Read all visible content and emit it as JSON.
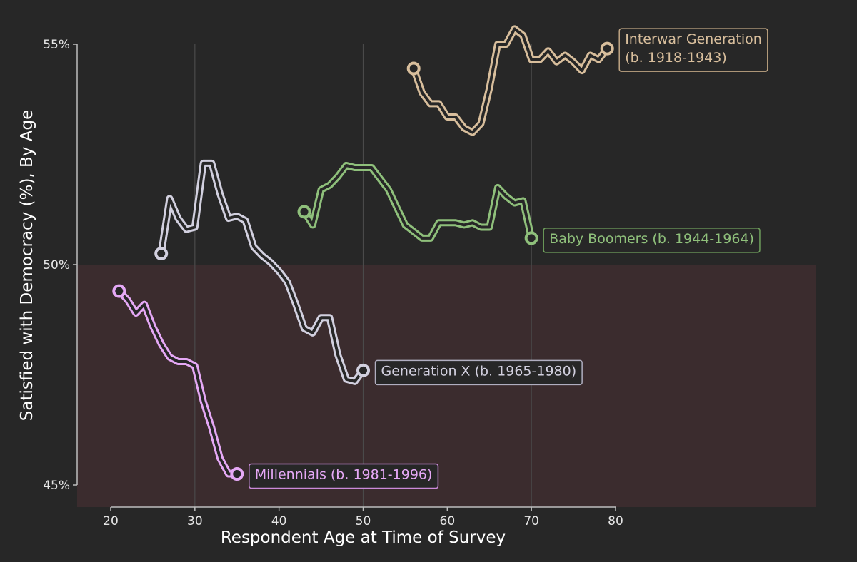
{
  "chart_data": {
    "type": "line",
    "title": "",
    "xlabel": "Respondent Age at Time of Survey",
    "ylabel": "Satisfied with Democracy (%), By Age",
    "xlim": [
      17,
      83
    ],
    "ylim": [
      44.5,
      56
    ],
    "x_ticks": [
      20,
      30,
      40,
      50,
      60,
      70,
      80
    ],
    "x_tick_labels": [
      "20",
      "30",
      "40",
      "50",
      "60",
      "70",
      "80"
    ],
    "y_ticks": [
      45,
      50,
      55
    ],
    "y_tick_labels": [
      "45%",
      "50%",
      "55%"
    ],
    "grid": "vertical lines at x = 30, 50, 70",
    "shaded_region": {
      "y_from": 44.5,
      "y_to": 50,
      "color": "#3b2c2e"
    },
    "background": "#272727",
    "legend": "inline labels at end of each line",
    "series": [
      {
        "name": "Millennials (b. 1981-1996)",
        "color": "#e5a8f5",
        "label_border": "#c98ad9",
        "x": [
          21,
          22,
          23,
          24,
          25,
          26,
          27,
          28,
          29,
          30,
          31,
          32,
          33,
          34,
          35
        ],
        "y": [
          49.4,
          49.2,
          48.9,
          49.1,
          48.6,
          48.2,
          47.9,
          47.8,
          47.8,
          47.7,
          46.9,
          46.3,
          45.6,
          45.25,
          45.25
        ]
      },
      {
        "name": "Generation X (b. 1965-1980)",
        "color": "#d2d0df",
        "label_border": "#b0aec0",
        "x": [
          26,
          27,
          28,
          29,
          30,
          31,
          32,
          33,
          34,
          35,
          36,
          37,
          38,
          39,
          40,
          41,
          42,
          43,
          44,
          45,
          46,
          47,
          48,
          49,
          50
        ],
        "y": [
          50.25,
          51.5,
          51.05,
          50.8,
          50.85,
          52.3,
          52.3,
          51.6,
          51.05,
          51.1,
          51.0,
          50.4,
          50.2,
          50.05,
          49.85,
          49.6,
          49.1,
          48.55,
          48.45,
          48.8,
          48.8,
          47.95,
          47.4,
          47.35,
          47.6
        ]
      },
      {
        "name": "Baby Boomers (b. 1944-1964)",
        "color": "#8fc07b",
        "label_border": "#6fa05c",
        "x": [
          43,
          44,
          45,
          46,
          47,
          48,
          49,
          50,
          51,
          52,
          53,
          54,
          55,
          56,
          57,
          58,
          59,
          60,
          61,
          62,
          63,
          64,
          65,
          66,
          67,
          68,
          69,
          70
        ],
        "y": [
          51.2,
          50.9,
          51.7,
          51.8,
          52.0,
          52.25,
          52.2,
          52.2,
          52.2,
          51.95,
          51.7,
          51.3,
          50.9,
          50.75,
          50.6,
          50.6,
          50.95,
          50.95,
          50.95,
          50.9,
          50.95,
          50.85,
          50.85,
          51.75,
          51.55,
          51.4,
          51.45,
          50.6
        ]
      },
      {
        "name": "Interwar Generation\n (b. 1918-1943)",
        "color": "#d8be9c",
        "label_border": "#bfa583",
        "x": [
          56,
          57,
          58,
          59,
          60,
          61,
          62,
          63,
          64,
          65,
          66,
          67,
          68,
          69,
          70,
          71,
          72,
          73,
          74,
          75,
          76,
          77,
          78,
          79
        ],
        "y": [
          54.45,
          53.9,
          53.65,
          53.65,
          53.35,
          53.35,
          53.1,
          53.0,
          53.2,
          54.0,
          55.0,
          55.0,
          55.35,
          55.2,
          54.65,
          54.65,
          54.85,
          54.6,
          54.75,
          54.6,
          54.4,
          54.75,
          54.65,
          54.9
        ]
      }
    ]
  }
}
